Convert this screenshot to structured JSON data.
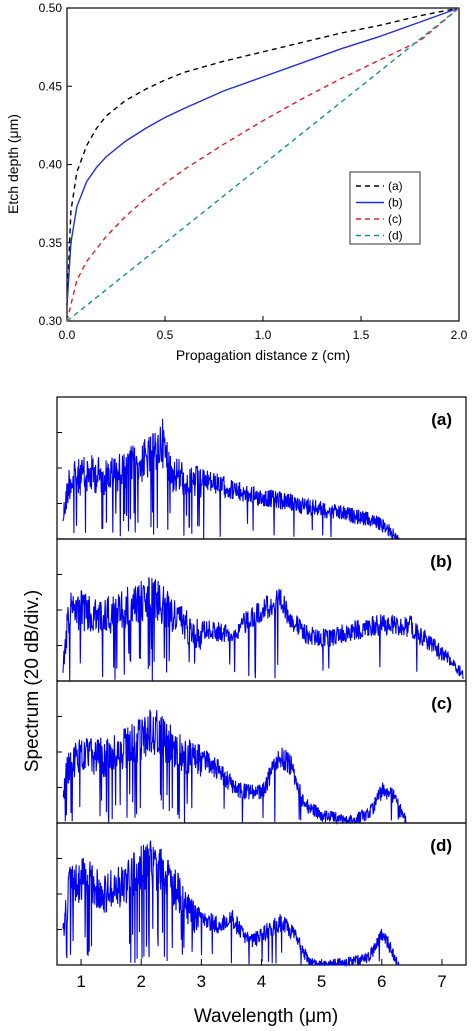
{
  "chart_data": [
    {
      "type": "line",
      "xlabel": "Propagation distance z (cm)",
      "ylabel": "Etch depth (μm)",
      "xlim": [
        0,
        2.0
      ],
      "ylim": [
        0.3,
        0.5
      ],
      "x_ticks": [
        "0.0",
        "0.5",
        "1.0",
        "1.5",
        "2.0"
      ],
      "y_ticks": [
        "0.30",
        "0.35",
        "0.40",
        "0.45",
        "0.50"
      ],
      "grid": false,
      "legend_position": "right-center",
      "series": [
        {
          "name": "(a)",
          "style": "dashed",
          "color": "#000000",
          "x": [
            0,
            0.02,
            0.05,
            0.1,
            0.15,
            0.2,
            0.3,
            0.4,
            0.5,
            0.6,
            0.8,
            1.0,
            1.2,
            1.4,
            1.6,
            1.8,
            2.0
          ],
          "y": [
            0.31,
            0.37,
            0.395,
            0.412,
            0.423,
            0.431,
            0.441,
            0.448,
            0.454,
            0.459,
            0.466,
            0.472,
            0.478,
            0.484,
            0.489,
            0.495,
            0.5
          ]
        },
        {
          "name": "(b)",
          "style": "solid",
          "color": "#1f2fd6",
          "x": [
            0,
            0.02,
            0.05,
            0.1,
            0.15,
            0.2,
            0.3,
            0.4,
            0.5,
            0.6,
            0.8,
            1.0,
            1.2,
            1.4,
            1.6,
            1.8,
            2.0
          ],
          "y": [
            0.31,
            0.35,
            0.373,
            0.389,
            0.398,
            0.405,
            0.415,
            0.423,
            0.43,
            0.436,
            0.447,
            0.456,
            0.465,
            0.474,
            0.482,
            0.491,
            0.5
          ]
        },
        {
          "name": "(c)",
          "style": "dashed",
          "color": "#e02020",
          "x": [
            0,
            0.05,
            0.1,
            0.2,
            0.3,
            0.4,
            0.5,
            0.6,
            0.8,
            1.0,
            1.2,
            1.4,
            1.6,
            1.8,
            2.0
          ],
          "y": [
            0.3,
            0.326,
            0.338,
            0.354,
            0.367,
            0.378,
            0.388,
            0.397,
            0.413,
            0.428,
            0.442,
            0.455,
            0.467,
            0.479,
            0.5
          ]
        },
        {
          "name": "(d)",
          "style": "dashed",
          "color": "#1b8f8f",
          "x": [
            0,
            2.0
          ],
          "y": [
            0.3,
            0.5
          ]
        }
      ]
    },
    {
      "type": "line",
      "xlabel": "Wavelength (μm)",
      "ylabel": "Spectrum (20 dB/div.)",
      "xlim": [
        0.6,
        7.4
      ],
      "x_ticks": [
        "1",
        "2",
        "3",
        "4",
        "5",
        "6",
        "7"
      ],
      "panels": [
        {
          "label": "(a)",
          "color": "#0000ee",
          "x": [
            0.7,
            0.8,
            1.0,
            1.2,
            1.4,
            1.6,
            1.8,
            2.0,
            2.2,
            2.35,
            2.5,
            2.8,
            3.0,
            3.3,
            3.6,
            4.0,
            4.4,
            4.8,
            5.2,
            5.6,
            5.9,
            6.1,
            6.25,
            6.3
          ],
          "y": [
            0.25,
            0.55,
            0.6,
            0.62,
            0.6,
            0.63,
            0.68,
            0.72,
            0.78,
            0.9,
            0.62,
            0.58,
            0.52,
            0.48,
            0.42,
            0.38,
            0.34,
            0.3,
            0.26,
            0.22,
            0.18,
            0.12,
            0.05,
            0.0
          ]
        },
        {
          "label": "(b)",
          "color": "#0000ee",
          "x": [
            0.7,
            0.8,
            1.0,
            1.2,
            1.4,
            1.6,
            1.8,
            2.0,
            2.2,
            2.5,
            2.8,
            3.0,
            3.5,
            4.0,
            4.3,
            4.7,
            5.0,
            5.5,
            6.0,
            6.5,
            6.9,
            7.2,
            7.35
          ],
          "y": [
            0.2,
            0.65,
            0.68,
            0.6,
            0.62,
            0.66,
            0.7,
            0.74,
            0.8,
            0.64,
            0.52,
            0.46,
            0.42,
            0.62,
            0.68,
            0.42,
            0.38,
            0.44,
            0.5,
            0.48,
            0.3,
            0.18,
            0.1
          ]
        },
        {
          "label": "(c)",
          "color": "#0000ee",
          "x": [
            0.7,
            0.8,
            1.0,
            1.2,
            1.4,
            1.6,
            1.8,
            2.0,
            2.2,
            2.5,
            2.8,
            3.0,
            3.3,
            3.6,
            4.0,
            4.3,
            4.5,
            4.7,
            5.0,
            5.5,
            5.8,
            6.0,
            6.2,
            6.4
          ],
          "y": [
            0.3,
            0.58,
            0.62,
            0.64,
            0.62,
            0.66,
            0.72,
            0.78,
            0.86,
            0.72,
            0.62,
            0.58,
            0.46,
            0.3,
            0.28,
            0.58,
            0.5,
            0.2,
            0.1,
            0.06,
            0.12,
            0.3,
            0.26,
            0.05
          ]
        },
        {
          "label": "(d)",
          "color": "#0000ee",
          "x": [
            0.7,
            0.8,
            1.0,
            1.2,
            1.4,
            1.6,
            1.8,
            2.0,
            2.2,
            2.5,
            2.8,
            3.0,
            3.3,
            3.5,
            3.8,
            4.0,
            4.3,
            4.5,
            4.8,
            5.0,
            5.8,
            6.0,
            6.1,
            6.3
          ],
          "y": [
            0.3,
            0.72,
            0.8,
            0.75,
            0.68,
            0.72,
            0.8,
            0.88,
            0.92,
            0.78,
            0.52,
            0.42,
            0.36,
            0.42,
            0.22,
            0.28,
            0.38,
            0.32,
            0.06,
            0.03,
            0.1,
            0.3,
            0.22,
            0.0
          ]
        }
      ]
    }
  ]
}
